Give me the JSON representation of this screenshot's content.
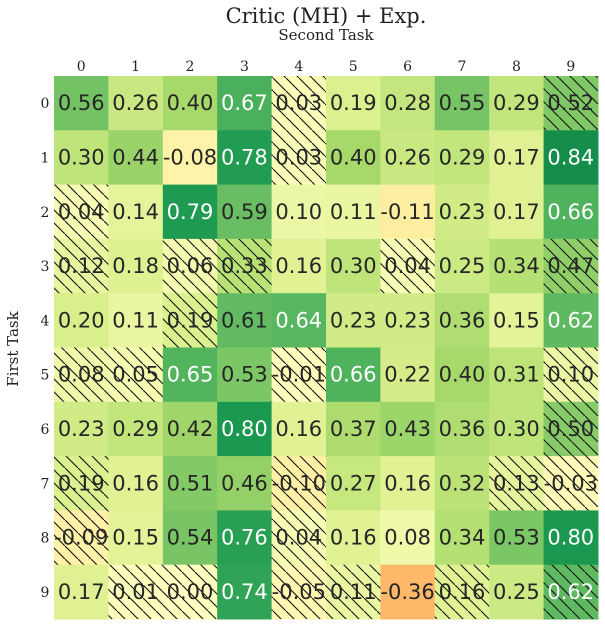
{
  "chart_data": {
    "type": "heatmap",
    "title": "Critic (MH) + Exp.",
    "xlabel": "Second Task",
    "ylabel": "First Task",
    "x_categories": [
      "0",
      "1",
      "2",
      "3",
      "4",
      "5",
      "6",
      "7",
      "8",
      "9"
    ],
    "y_categories": [
      "0",
      "1",
      "2",
      "3",
      "4",
      "5",
      "6",
      "7",
      "8",
      "9"
    ],
    "values": [
      [
        0.56,
        0.26,
        0.4,
        0.67,
        0.03,
        0.19,
        0.28,
        0.55,
        0.29,
        0.52
      ],
      [
        0.3,
        0.44,
        -0.08,
        0.78,
        0.03,
        0.4,
        0.26,
        0.29,
        0.17,
        0.84
      ],
      [
        0.04,
        0.14,
        0.79,
        0.59,
        0.1,
        0.11,
        -0.11,
        0.23,
        0.17,
        0.66
      ],
      [
        0.12,
        0.18,
        0.06,
        0.33,
        0.16,
        0.3,
        0.04,
        0.25,
        0.34,
        0.47
      ],
      [
        0.2,
        0.11,
        0.19,
        0.61,
        0.64,
        0.23,
        0.23,
        0.36,
        0.15,
        0.62
      ],
      [
        0.08,
        0.05,
        0.65,
        0.53,
        -0.01,
        0.66,
        0.22,
        0.4,
        0.31,
        0.1
      ],
      [
        0.23,
        0.29,
        0.42,
        0.8,
        0.16,
        0.37,
        0.43,
        0.36,
        0.3,
        0.5
      ],
      [
        0.19,
        0.16,
        0.51,
        0.46,
        -0.1,
        0.27,
        0.16,
        0.32,
        0.13,
        -0.03
      ],
      [
        -0.09,
        0.15,
        0.54,
        0.76,
        0.04,
        0.16,
        0.08,
        0.34,
        0.53,
        0.8
      ],
      [
        0.17,
        0.01,
        0.0,
        0.74,
        -0.05,
        0.11,
        -0.36,
        0.16,
        0.25,
        0.62
      ]
    ],
    "value_labels": [
      [
        "0.56",
        "0.26",
        "0.40",
        "0.67",
        "0.03",
        "0.19",
        "0.28",
        "0.55",
        "0.29",
        "0.52"
      ],
      [
        "0.30",
        "0.44",
        "-0.08",
        "0.78",
        "0.03",
        "0.40",
        "0.26",
        "0.29",
        "0.17",
        "0.84"
      ],
      [
        "0.04",
        "0.14",
        "0.79",
        "0.59",
        "0.10",
        "0.11",
        "-0.11",
        "0.23",
        "0.17",
        "0.66"
      ],
      [
        "0.12",
        "0.18",
        "0.06",
        "0.33",
        "0.16",
        "0.30",
        "0.04",
        "0.25",
        "0.34",
        "0.47"
      ],
      [
        "0.20",
        "0.11",
        "0.19",
        "0.61",
        "0.64",
        "0.23",
        "0.23",
        "0.36",
        "0.15",
        "0.62"
      ],
      [
        "0.08",
        "0.05",
        "0.65",
        "0.53",
        "-0.01",
        "0.66",
        "0.22",
        "0.40",
        "0.31",
        "0.10"
      ],
      [
        "0.23",
        "0.29",
        "0.42",
        "0.80",
        "0.16",
        "0.37",
        "0.43",
        "0.36",
        "0.30",
        "0.50"
      ],
      [
        "0.19",
        "0.16",
        "0.51",
        "0.46",
        "-0.10",
        "0.27",
        "0.16",
        "0.32",
        "0.13",
        "-0.03"
      ],
      [
        "-0.09",
        "0.15",
        "0.54",
        "0.76",
        "0.04",
        "0.16",
        "0.08",
        "0.34",
        "0.53",
        "0.80"
      ],
      [
        "0.17",
        "0.01",
        "0.00",
        "0.74",
        "-0.05",
        "0.11",
        "-0.36",
        "0.16",
        "0.25",
        "0.62"
      ]
    ],
    "hatched": [
      [
        false,
        false,
        false,
        false,
        true,
        false,
        false,
        false,
        false,
        true
      ],
      [
        false,
        false,
        false,
        false,
        true,
        false,
        false,
        false,
        false,
        false
      ],
      [
        true,
        false,
        false,
        false,
        false,
        false,
        false,
        false,
        false,
        false
      ],
      [
        true,
        false,
        true,
        true,
        false,
        false,
        true,
        false,
        false,
        true
      ],
      [
        false,
        false,
        true,
        false,
        false,
        false,
        false,
        false,
        false,
        false
      ],
      [
        true,
        true,
        false,
        false,
        true,
        false,
        false,
        false,
        false,
        true
      ],
      [
        false,
        false,
        false,
        false,
        false,
        false,
        false,
        false,
        false,
        true
      ],
      [
        true,
        false,
        false,
        false,
        true,
        false,
        false,
        false,
        true,
        true
      ],
      [
        true,
        false,
        false,
        false,
        true,
        false,
        false,
        false,
        false,
        false
      ],
      [
        false,
        true,
        true,
        false,
        true,
        true,
        false,
        true,
        false,
        true
      ]
    ],
    "colormap": "RdYlGn",
    "value_range": [
      -1,
      1
    ],
    "grid": false,
    "legend": "none"
  }
}
